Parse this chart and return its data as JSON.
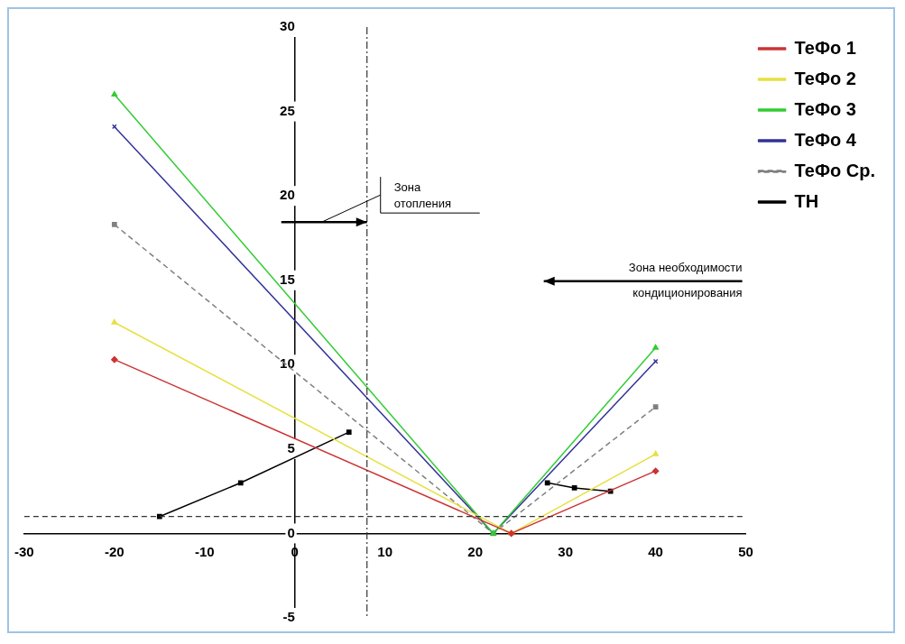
{
  "chart_data": {
    "type": "line",
    "series": [
      {
        "name": "ТеФо 1",
        "color": "#cc3333",
        "marker": "diamond",
        "line_style": "solid",
        "x": [
          -20,
          24,
          40
        ],
        "values": [
          10.3,
          0,
          3.7
        ]
      },
      {
        "name": "ТеФо 2",
        "color": "#e8e040",
        "marker": "triangle",
        "line_style": "solid",
        "x": [
          -20,
          24,
          40
        ],
        "values": [
          12.5,
          0,
          4.7
        ]
      },
      {
        "name": "ТеФо 3",
        "color": "#33cc33",
        "marker": "triangle",
        "line_style": "solid",
        "x": [
          -20,
          22,
          40
        ],
        "values": [
          26,
          0,
          11
        ]
      },
      {
        "name": "ТеФо 4",
        "color": "#333399",
        "marker": "cross",
        "line_style": "solid",
        "x": [
          -20,
          22,
          40
        ],
        "values": [
          24.1,
          0,
          10.2
        ]
      },
      {
        "name": "ТеФо Ср.",
        "color": "#808080",
        "marker": "square",
        "line_style": "dashed",
        "x": [
          -20,
          22,
          40
        ],
        "values": [
          18.3,
          0,
          7.5
        ]
      },
      {
        "name": "ТН",
        "color": "#000000",
        "marker": "square",
        "line_style": "solid",
        "x": [
          -15,
          -6,
          6,
          17,
          28,
          31,
          35
        ],
        "values": [
          1,
          3,
          6,
          null,
          3,
          2.7,
          2.5
        ]
      }
    ],
    "xlim": [
      -30,
      50
    ],
    "xticks": [
      -30,
      -20,
      -10,
      0,
      10,
      20,
      30,
      40,
      50
    ],
    "ylim": [
      -5,
      30
    ],
    "yticks": [
      -5,
      0,
      5,
      10,
      15,
      20,
      25,
      30
    ],
    "ref_lines": [
      {
        "axis": "y",
        "value": 1,
        "color": "#333333",
        "line_style": "dashed"
      },
      {
        "axis": "x",
        "value": 8,
        "color": "#333333",
        "line_style": "dashdot"
      }
    ],
    "annotations": [
      "Зона отопления",
      "Зона необходимости кондиционирования"
    ],
    "grid": false,
    "legend": "top right"
  }
}
